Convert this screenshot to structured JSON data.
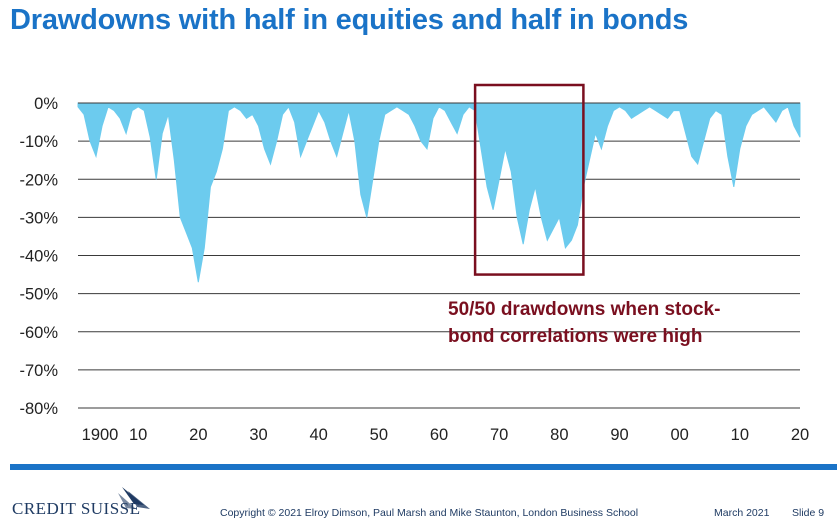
{
  "title": "Drawdowns with half in equities and half in bonds",
  "chart_data": {
    "type": "area",
    "title": "Drawdowns with half in equities and half in bonds",
    "xlabel": "",
    "ylabel": "",
    "xlim": [
      1900,
      2020
    ],
    "ylim": [
      -80,
      0
    ],
    "y_ticks": [
      0,
      -10,
      -20,
      -30,
      -40,
      -50,
      -60,
      -70,
      -80
    ],
    "y_tick_labels": [
      "0%",
      "-10%",
      "-20%",
      "-30%",
      "-40%",
      "-50%",
      "-60%",
      "-70%",
      "-80%"
    ],
    "x_ticks": [
      1900,
      1910,
      1920,
      1930,
      1940,
      1950,
      1960,
      1970,
      1980,
      1990,
      2000,
      2010,
      2020
    ],
    "x_tick_labels": [
      "1900",
      "10",
      "20",
      "30",
      "40",
      "50",
      "60",
      "70",
      "80",
      "90",
      "00",
      "10",
      "20"
    ],
    "grid": true,
    "fill_color": "#6ccbee",
    "series": [
      {
        "x": [
          1900,
          1901,
          1902,
          1903,
          1904,
          1905,
          1906,
          1907,
          1908,
          1909,
          1910,
          1911,
          1912,
          1913,
          1914,
          1915,
          1916,
          1917,
          1918,
          1919,
          1920,
          1921,
          1922,
          1923,
          1924,
          1925,
          1926,
          1927,
          1928,
          1929,
          1930,
          1931,
          1932,
          1933,
          1934,
          1935,
          1936,
          1937,
          1938,
          1939,
          1940,
          1941,
          1942,
          1943,
          1944,
          1945,
          1946,
          1947,
          1948,
          1949,
          1950,
          1951,
          1952,
          1953,
          1954,
          1955,
          1956,
          1957,
          1958,
          1959,
          1960,
          1961,
          1962,
          1963,
          1964,
          1965,
          1966,
          1967,
          1968,
          1969,
          1970,
          1971,
          1972,
          1973,
          1974,
          1975,
          1976,
          1977,
          1978,
          1979,
          1980,
          1981,
          1982,
          1983,
          1984,
          1985,
          1986,
          1987,
          1988,
          1989,
          1990,
          1991,
          1992,
          1993,
          1994,
          1995,
          1996,
          1997,
          1998,
          1999,
          2000,
          2001,
          2002,
          2003,
          2004,
          2005,
          2006,
          2007,
          2008,
          2009,
          2010,
          2011,
          2012,
          2013,
          2014,
          2015,
          2016,
          2017,
          2018,
          2019,
          2020
        ],
        "y": [
          -1,
          -3,
          -10,
          -14,
          -6,
          -1,
          -2,
          -4,
          -8,
          -2,
          -1,
          -2,
          -9,
          -20,
          -8,
          -3,
          -15,
          -30,
          -34,
          -38,
          -47,
          -38,
          -22,
          -18,
          -12,
          -2,
          -1,
          -2,
          -4,
          -3,
          -6,
          -12,
          -16,
          -10,
          -3,
          -1,
          -5,
          -14,
          -10,
          -6,
          -2,
          -5,
          -10,
          -14,
          -8,
          -2,
          -10,
          -24,
          -30,
          -20,
          -10,
          -3,
          -2,
          -1,
          -2,
          -3,
          -6,
          -10,
          -12,
          -4,
          -1,
          -2,
          -5,
          -8,
          -3,
          -1,
          -2,
          -12,
          -22,
          -28,
          -20,
          -12,
          -18,
          -30,
          -37,
          -28,
          -22,
          -30,
          -36,
          -33,
          -30,
          -38,
          -36,
          -32,
          -22,
          -15,
          -8,
          -12,
          -6,
          -2,
          -1,
          -2,
          -4,
          -3,
          -2,
          -1,
          -2,
          -3,
          -4,
          -2,
          -2,
          -8,
          -14,
          -16,
          -10,
          -4,
          -2,
          -3,
          -14,
          -22,
          -12,
          -6,
          -3,
          -2,
          -1,
          -3,
          -5,
          -2,
          -1,
          -6,
          -9
        ]
      }
    ],
    "annotations": [
      {
        "text_lines": [
          "50/50 drawdowns when stock-",
          "bond correlations were high"
        ],
        "color": "#7a0f1f",
        "highlight_x": [
          1966,
          1984
        ],
        "highlight_y": [
          -45,
          5
        ]
      }
    ]
  },
  "footer": {
    "logo": "CREDIT SUISSE",
    "copyright": "Copyright © 2021 Elroy Dimson, Paul Marsh and Mike Staunton, London Business School",
    "date": "March 2021",
    "slide": "Slide 9"
  }
}
